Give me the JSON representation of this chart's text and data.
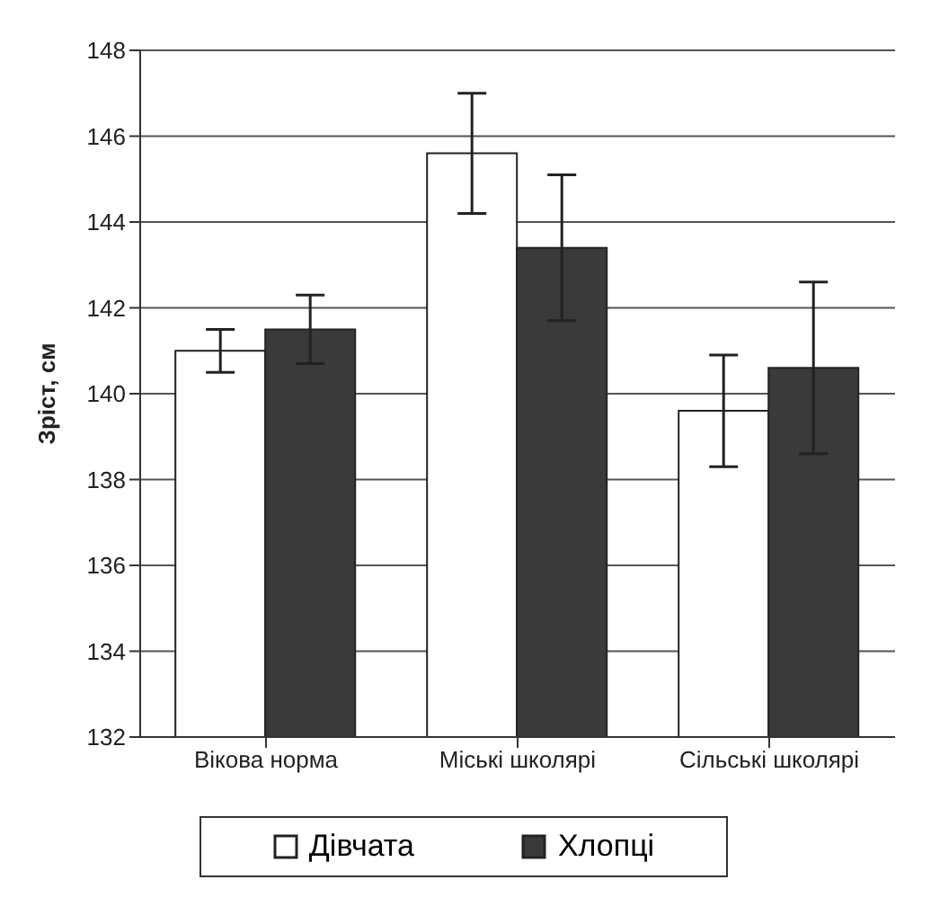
{
  "chart_data": {
    "type": "bar",
    "ylabel": "Зріст, см",
    "categories": [
      "Вікова норма",
      "Міські школярі",
      "Сільські школярі"
    ],
    "series": [
      {
        "name": "Дівчата",
        "color": "#ffffff",
        "values": [
          141.0,
          145.6,
          139.6
        ],
        "errors": [
          0.5,
          1.4,
          1.3
        ]
      },
      {
        "name": "Хлопці",
        "color": "#3a3a3a",
        "values": [
          141.5,
          143.4,
          140.6
        ],
        "errors": [
          0.8,
          1.7,
          2.0
        ]
      }
    ],
    "ylim": [
      132,
      148
    ],
    "yticks": [
      132,
      134,
      136,
      138,
      140,
      142,
      144,
      146,
      148
    ],
    "grid": "y",
    "legend": "bottom"
  }
}
